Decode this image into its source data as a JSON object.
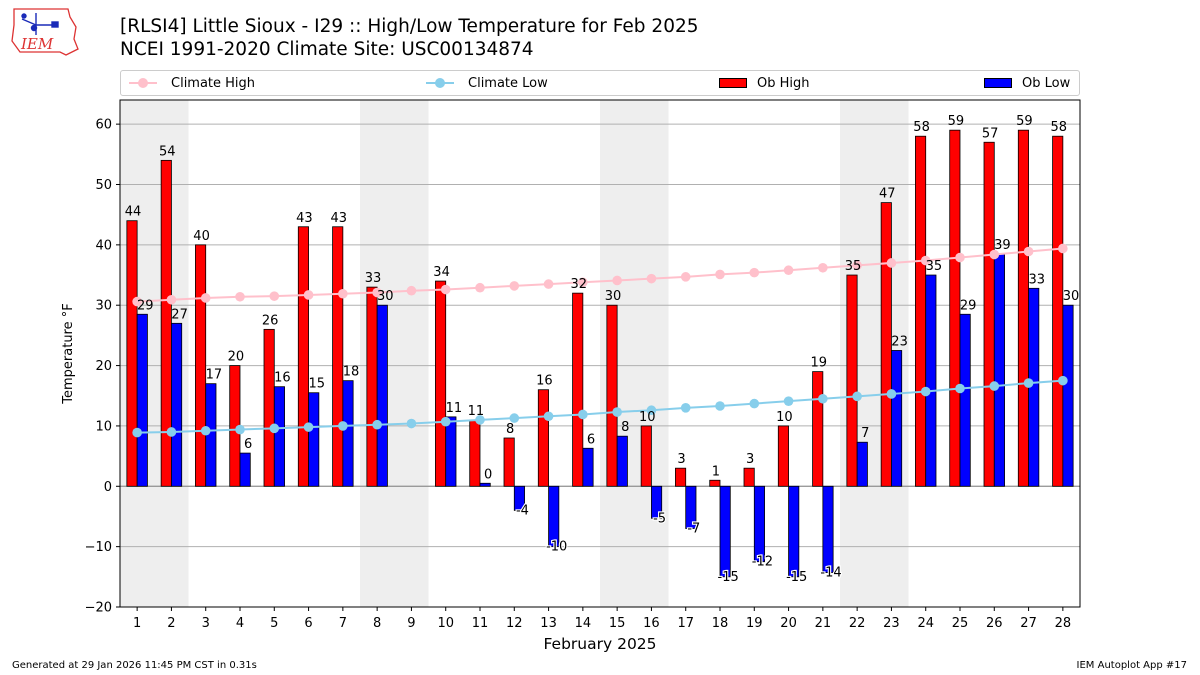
{
  "header": {
    "title_line1": "[RLSI4] Little Sioux - I29 :: High/Low Temperature for Feb 2025",
    "title_line2": "NCEI 1991-2020 Climate Site: USC00134874",
    "logo_text": "IEM"
  },
  "footer": {
    "left": "Generated at 29 Jan 2026 11:45 PM CST in 0.31s",
    "right": "IEM Autoplot App #17"
  },
  "colors": {
    "climate_high": "#ffc0cb",
    "climate_low": "#87ceeb",
    "ob_high": "#ff0000",
    "ob_low": "#0000ff",
    "weekend_shade": "#eeeeee",
    "grid": "#b0b0b0"
  },
  "chart_data": {
    "type": "bar",
    "xlabel": "February 2025",
    "ylabel": "Temperature °F",
    "ylim": [
      -20,
      64
    ],
    "yticks": [
      -20,
      -10,
      0,
      10,
      20,
      30,
      40,
      50,
      60
    ],
    "x": [
      1,
      2,
      3,
      4,
      5,
      6,
      7,
      8,
      9,
      10,
      11,
      12,
      13,
      14,
      15,
      16,
      17,
      18,
      19,
      20,
      21,
      22,
      23,
      24,
      25,
      26,
      27,
      28
    ],
    "shaded_days": [
      [
        1,
        2
      ],
      [
        8,
        9
      ],
      [
        15,
        16
      ],
      [
        22,
        23
      ]
    ],
    "grid": "horizontal",
    "legend_position": "top",
    "legend": [
      "Climate High",
      "Climate Low",
      "Ob High",
      "Ob Low"
    ],
    "series": [
      {
        "name": "Ob High",
        "kind": "bar",
        "values": [
          44,
          54,
          40,
          20,
          26,
          43,
          43,
          33,
          null,
          34,
          11,
          8,
          16,
          32,
          30,
          10,
          3,
          1,
          3,
          10,
          19,
          35,
          47,
          58,
          59,
          57,
          59,
          58
        ],
        "labels": [
          "44",
          "54",
          "40",
          "20",
          "26",
          "43",
          "43",
          "33",
          null,
          "34",
          "11",
          "8",
          "16",
          "32",
          "30",
          "10",
          "3",
          "1",
          "3",
          "10",
          "19",
          "35",
          "47",
          "58",
          "59",
          "57",
          "59",
          "58"
        ]
      },
      {
        "name": "Ob Low",
        "kind": "bar",
        "values": [
          28.5,
          27,
          17,
          5.5,
          16.5,
          15.5,
          17.5,
          30,
          null,
          11.5,
          0.5,
          -4,
          -10,
          6.3,
          8.3,
          -5.3,
          -7,
          -15,
          -12.5,
          -15,
          -14.3,
          7.3,
          22.5,
          35,
          28.5,
          38.5,
          32.8,
          30
        ],
        "labels": [
          "29",
          "27",
          "17",
          "6",
          "16",
          "15",
          "18",
          "30",
          null,
          "11",
          "0",
          "-4",
          "-10",
          "6",
          "8",
          "-5",
          "-7",
          "-15",
          "-12",
          "-15",
          "-14",
          "7",
          "23",
          "35",
          "29",
          "39",
          "33",
          "30"
        ]
      },
      {
        "name": "Climate High",
        "kind": "line",
        "values": [
          30.6,
          30.9,
          31.2,
          31.4,
          31.5,
          31.7,
          31.9,
          32.1,
          32.4,
          32.6,
          32.9,
          33.2,
          33.5,
          33.8,
          34.1,
          34.4,
          34.7,
          35.1,
          35.4,
          35.8,
          36.2,
          36.6,
          37.0,
          37.4,
          37.9,
          38.4,
          38.9,
          39.4
        ]
      },
      {
        "name": "Climate Low",
        "kind": "line",
        "values": [
          8.9,
          9.0,
          9.2,
          9.4,
          9.6,
          9.8,
          10.0,
          10.2,
          10.4,
          10.7,
          11.0,
          11.3,
          11.6,
          11.9,
          12.3,
          12.6,
          13.0,
          13.3,
          13.7,
          14.1,
          14.5,
          14.9,
          15.3,
          15.7,
          16.2,
          16.6,
          17.1,
          17.5
        ]
      }
    ]
  }
}
